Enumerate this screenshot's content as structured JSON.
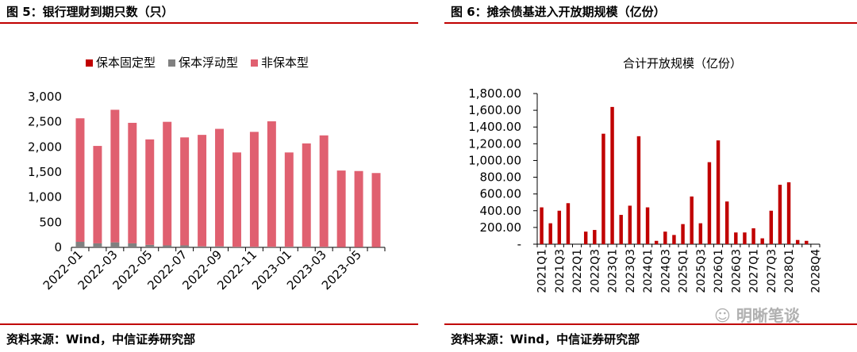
{
  "left": {
    "title": "图 5：银行理财到期只数（只）",
    "source": "资料来源：Wind，中信证券研究部",
    "chart_data": {
      "type": "bar",
      "stacked": true,
      "title": "",
      "xlabel": "",
      "ylabel": "",
      "ylim": [
        0,
        3000
      ],
      "yticks": [
        "0",
        "500",
        "1,000",
        "1,500",
        "2,000",
        "2,500",
        "3,000"
      ],
      "ytick_values": [
        0,
        500,
        1000,
        1500,
        2000,
        2500,
        3000
      ],
      "categories": [
        "2022-01",
        "2022-02",
        "2022-03",
        "2022-04",
        "2022-05",
        "2022-06",
        "2022-07",
        "2022-08",
        "2022-09",
        "2022-10",
        "2022-11",
        "2022-12",
        "2023-01",
        "2023-02",
        "2023-03",
        "2023-04",
        "2023-05",
        "2023-06"
      ],
      "xtick_labels": [
        "2022-01",
        "2022-03",
        "2022-05",
        "2022-07",
        "2022-09",
        "2022-11",
        "2023-01",
        "2023-03",
        "2023-05"
      ],
      "legend_position": "top",
      "grid": false,
      "series": [
        {
          "name": "保本固定型",
          "color": "#c00000",
          "values": [
            0,
            0,
            0,
            0,
            0,
            0,
            0,
            0,
            0,
            0,
            0,
            0,
            0,
            0,
            0,
            0,
            0,
            0
          ]
        },
        {
          "name": "保本浮动型",
          "color": "#808080",
          "values": [
            110,
            80,
            100,
            80,
            50,
            40,
            40,
            20,
            20,
            10,
            10,
            10,
            10,
            10,
            10,
            5,
            5,
            5
          ]
        },
        {
          "name": "非保本型",
          "color": "#e06070",
          "values": [
            2460,
            1940,
            2640,
            2400,
            2100,
            2460,
            2150,
            2220,
            2340,
            1880,
            2290,
            2500,
            1880,
            2060,
            2220,
            1525,
            1515,
            1475
          ]
        }
      ]
    }
  },
  "right": {
    "title": "图 6：摊余债基进入开放期规模（亿份）",
    "source": "资料来源：Wind，中信证券研究部",
    "watermark": "明晰笔谈",
    "chart_data": {
      "type": "bar",
      "title": "合计开放规模（亿份）",
      "xlabel": "",
      "ylabel": "",
      "ylim": [
        0,
        1800
      ],
      "yticks": [
        "-",
        "200.00",
        "400.00",
        "600.00",
        "800.00",
        "1,000.00",
        "1,200.00",
        "1,400.00",
        "1,600.00",
        "1,800.00"
      ],
      "ytick_values": [
        0,
        200,
        400,
        600,
        800,
        1000,
        1200,
        1400,
        1600,
        1800
      ],
      "categories": [
        "2021Q1",
        "2021Q2",
        "2021Q3",
        "2021Q4",
        "2022Q1",
        "2022Q2",
        "2022Q3",
        "2022Q4",
        "2023Q1",
        "2023Q2",
        "2023Q3",
        "2023Q4",
        "2024Q1",
        "2024Q2",
        "2024Q3",
        "2024Q4",
        "2025Q1",
        "2025Q2",
        "2025Q3",
        "2025Q4",
        "2026Q1",
        "2026Q2",
        "2026Q3",
        "2026Q4",
        "2027Q1",
        "2027Q2",
        "2027Q3",
        "2027Q4",
        "2028Q1",
        "2028Q2",
        "2028Q3",
        "2028Q4"
      ],
      "xtick_labels": [
        "2021Q1",
        "2021Q3",
        "2022Q1",
        "2022Q3",
        "2023Q1",
        "2023Q3",
        "2024Q1",
        "2024Q3",
        "2025Q1",
        "2025Q3",
        "2026Q1",
        "2026Q3",
        "2027Q1",
        "2027Q3",
        "2028Q1",
        "2028Q4"
      ],
      "grid": false,
      "series": [
        {
          "name": "",
          "color": "#c00000",
          "values": [
            440,
            250,
            400,
            490,
            0,
            150,
            170,
            1320,
            1640,
            350,
            460,
            1290,
            440,
            40,
            150,
            110,
            240,
            570,
            250,
            980,
            1240,
            510,
            140,
            140,
            190,
            70,
            400,
            710,
            740,
            50,
            40,
            0
          ]
        }
      ]
    }
  }
}
